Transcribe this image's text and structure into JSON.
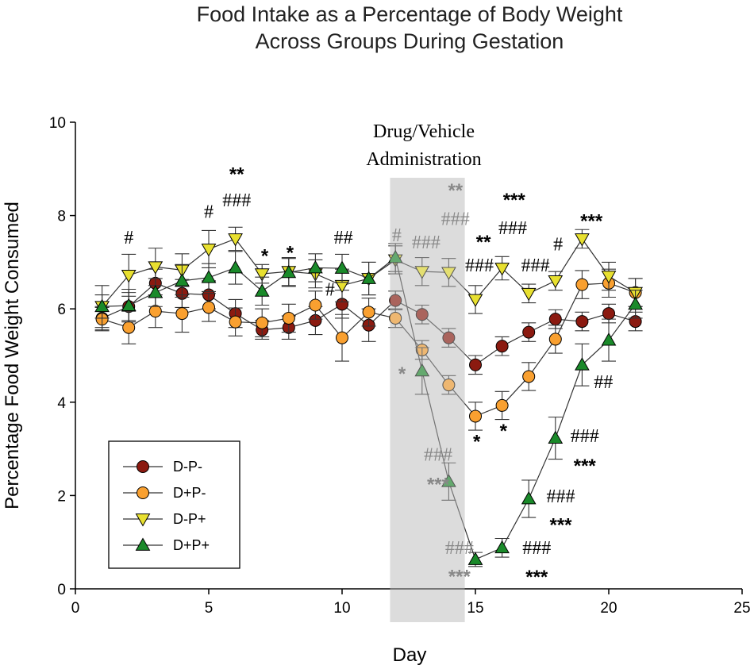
{
  "chart_data": {
    "type": "line",
    "title_lines": [
      "Food Intake as a Percentage of Body Weight",
      "Across Groups During Gestation"
    ],
    "xlabel": "Day",
    "ylabel": "Percentage Food Weight Consumed",
    "xlim": [
      0,
      25
    ],
    "ylim": [
      0,
      10
    ],
    "xticks": [
      0,
      5,
      10,
      15,
      20,
      25
    ],
    "yticks": [
      0,
      2,
      4,
      6,
      8,
      10
    ],
    "shaded_region": {
      "x_start": 11.8,
      "x_end": 14.6,
      "label_lines": [
        "Drug/Vehicle",
        "Administration"
      ]
    },
    "legend_position": "bottom-left",
    "series": [
      {
        "name": "D-P-",
        "marker": "circle",
        "fill": "#8b1a10",
        "x": [
          1,
          2,
          3,
          4,
          5,
          6,
          7,
          8,
          9,
          10,
          11,
          12,
          13,
          14,
          15,
          16,
          17,
          18,
          19,
          20,
          21
        ],
        "values": [
          5.8,
          6.05,
          6.55,
          6.33,
          6.3,
          5.9,
          5.55,
          5.6,
          5.75,
          6.1,
          5.65,
          6.18,
          5.88,
          5.38,
          4.8,
          5.2,
          5.5,
          5.78,
          5.73,
          5.9,
          5.73
        ],
        "errors": [
          0.25,
          0.3,
          0.3,
          0.3,
          0.3,
          0.3,
          0.2,
          0.25,
          0.3,
          0.3,
          0.35,
          0.2,
          0.2,
          0.2,
          0.2,
          0.2,
          0.2,
          0.2,
          0.2,
          0.2,
          0.2
        ]
      },
      {
        "name": "D+P-",
        "marker": "circle",
        "fill": "#f9a030",
        "x": [
          1,
          2,
          3,
          4,
          5,
          6,
          7,
          8,
          9,
          10,
          11,
          12,
          13,
          14,
          15,
          16,
          17,
          18,
          19,
          20,
          21
        ],
        "values": [
          5.78,
          5.6,
          5.95,
          5.9,
          6.03,
          5.72,
          5.7,
          5.8,
          6.08,
          5.38,
          5.93,
          5.8,
          5.12,
          4.37,
          3.7,
          3.93,
          4.55,
          5.35,
          6.52,
          6.55,
          6.35
        ],
        "errors": [
          0.25,
          0.35,
          0.35,
          0.4,
          0.3,
          0.3,
          0.3,
          0.3,
          0.3,
          0.5,
          0.3,
          0.2,
          0.2,
          0.2,
          0.3,
          0.3,
          0.3,
          0.3,
          0.3,
          0.3,
          0.3
        ]
      },
      {
        "name": "D-P+",
        "marker": "triangle-down",
        "fill": "#e8e030",
        "x": [
          1,
          2,
          3,
          4,
          5,
          6,
          7,
          8,
          9,
          10,
          11,
          12,
          13,
          14,
          15,
          16,
          17,
          18,
          19,
          20,
          21
        ],
        "values": [
          6.05,
          6.72,
          6.9,
          6.83,
          7.28,
          7.5,
          6.75,
          6.8,
          6.75,
          6.5,
          6.65,
          7.05,
          6.8,
          6.78,
          6.2,
          6.87,
          6.33,
          6.6,
          7.5,
          6.7,
          6.35
        ],
        "errors": [
          0.45,
          0.45,
          0.4,
          0.35,
          0.4,
          0.25,
          0.2,
          0.3,
          0.3,
          0.35,
          0.35,
          0.3,
          0.3,
          0.3,
          0.3,
          0.25,
          0.2,
          0.2,
          0.2,
          0.3,
          0.3
        ]
      },
      {
        "name": "D+P+",
        "marker": "triangle-up",
        "fill": "#1a8a2a",
        "x": [
          1,
          2,
          3,
          4,
          5,
          6,
          7,
          8,
          9,
          10,
          11,
          12,
          13,
          14,
          15,
          16,
          17,
          18,
          19,
          20,
          21
        ],
        "values": [
          6.05,
          6.07,
          6.35,
          6.6,
          6.67,
          6.88,
          6.38,
          6.78,
          6.88,
          6.87,
          6.65,
          7.1,
          4.67,
          2.3,
          0.63,
          0.88,
          1.93,
          3.23,
          4.8,
          5.33,
          6.1
        ],
        "errors": [
          0.25,
          0.35,
          0.3,
          0.35,
          0.3,
          0.35,
          0.3,
          0.3,
          0.3,
          0.3,
          0.35,
          0.3,
          0.5,
          0.4,
          0.15,
          0.2,
          0.4,
          0.45,
          0.45,
          0.45,
          0.3
        ]
      }
    ],
    "annotations": [
      {
        "text": "#",
        "x": 2,
        "y": 7.4,
        "color": "#000000"
      },
      {
        "text": "#",
        "x": 5,
        "y": 7.95,
        "color": "#000000"
      },
      {
        "text": "**",
        "x": 6.05,
        "y": 8.75,
        "color": "#000000"
      },
      {
        "text": "###",
        "x": 6.05,
        "y": 8.2,
        "color": "#000000"
      },
      {
        "text": "*",
        "x": 7.1,
        "y": 7.0,
        "color": "#000000"
      },
      {
        "text": "*",
        "x": 8.05,
        "y": 7.07,
        "color": "#000000"
      },
      {
        "text": "##",
        "x": 10.05,
        "y": 7.4,
        "color": "#000000"
      },
      {
        "text": "#",
        "x": 9.55,
        "y": 6.28,
        "color": "#000000"
      },
      {
        "text": "#",
        "x": 12.05,
        "y": 7.45,
        "color": "#888888"
      },
      {
        "text": "###",
        "x": 13.15,
        "y": 7.3,
        "color": "#888888"
      },
      {
        "text": "**",
        "x": 14.25,
        "y": 8.4,
        "color": "#888888"
      },
      {
        "text": "###",
        "x": 14.25,
        "y": 7.8,
        "color": "#888888"
      },
      {
        "text": "*",
        "x": 12.25,
        "y": 4.47,
        "color": "#888888"
      },
      {
        "text": "###",
        "x": 13.6,
        "y": 2.75,
        "color": "#888888"
      },
      {
        "text": "***",
        "x": 13.6,
        "y": 2.1,
        "color": "#888888"
      },
      {
        "text": "###",
        "x": 14.4,
        "y": 0.75,
        "color": "#888888"
      },
      {
        "text": "***",
        "x": 14.4,
        "y": 0.13,
        "color": "#888888"
      },
      {
        "text": "***",
        "x": 16.45,
        "y": 8.2,
        "color": "#000000"
      },
      {
        "text": "###",
        "x": 16.4,
        "y": 7.6,
        "color": "#000000"
      },
      {
        "text": "**",
        "x": 15.3,
        "y": 7.3,
        "color": "#000000"
      },
      {
        "text": "###",
        "x": 15.15,
        "y": 6.8,
        "color": "#000000"
      },
      {
        "text": "###",
        "x": 17.25,
        "y": 6.8,
        "color": "#000000"
      },
      {
        "text": "#",
        "x": 18.1,
        "y": 7.25,
        "color": "#000000"
      },
      {
        "text": "***",
        "x": 19.35,
        "y": 7.75,
        "color": "#000000"
      },
      {
        "text": "*",
        "x": 15.05,
        "y": 3.02,
        "color": "#000000"
      },
      {
        "text": "*",
        "x": 16.05,
        "y": 3.25,
        "color": "#000000"
      },
      {
        "text": "##",
        "x": 19.8,
        "y": 4.3,
        "color": "#000000"
      },
      {
        "text": "###",
        "x": 19.1,
        "y": 3.15,
        "color": "#000000"
      },
      {
        "text": "***",
        "x": 19.1,
        "y": 2.5,
        "color": "#000000"
      },
      {
        "text": "###",
        "x": 18.2,
        "y": 1.85,
        "color": "#000000"
      },
      {
        "text": "***",
        "x": 18.2,
        "y": 1.23,
        "color": "#000000"
      },
      {
        "text": "###",
        "x": 17.3,
        "y": 0.75,
        "color": "#000000"
      },
      {
        "text": "***",
        "x": 17.3,
        "y": 0.12,
        "color": "#000000"
      }
    ]
  }
}
